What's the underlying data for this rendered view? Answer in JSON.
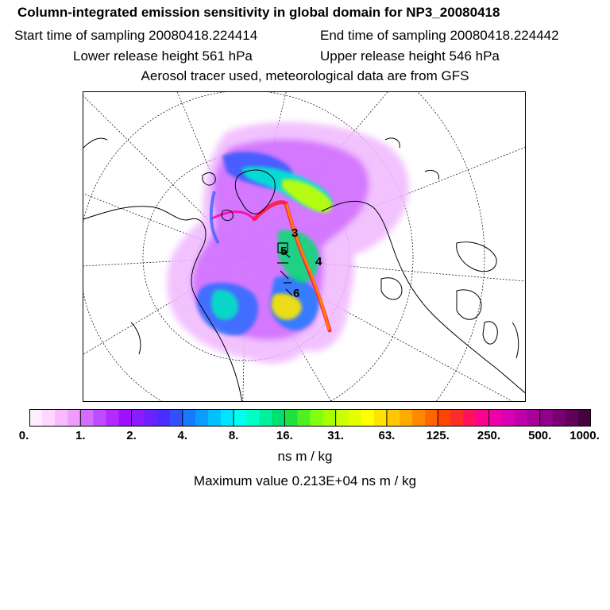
{
  "header": {
    "title": "Column-integrated emission sensitivity in global domain for NP3_20080418",
    "start_time": "Start time of sampling 20080418.224414",
    "end_time": "End time of sampling 20080418.224442",
    "lower_release": "Lower release height  561 hPa",
    "upper_release": "Upper release height  546 hPa",
    "tracer_info": "Aerosol tracer used, meteorological data are from GFS"
  },
  "map": {
    "projection": "north-polar-stereographic",
    "plume_labels": [
      "3",
      "4",
      "5",
      "6"
    ]
  },
  "colorbar": {
    "tick_labels": [
      "0.",
      "1.",
      "2.",
      "4.",
      "8.",
      "16.",
      "31.",
      "63.",
      "125.",
      "250.",
      "500.",
      "1000."
    ],
    "unit": "ns m / kg",
    "colors": [
      "#ffeeff",
      "#ffd6ff",
      "#f8baff",
      "#f09cff",
      "#d56cff",
      "#c04cff",
      "#b22cff",
      "#a010ff",
      "#8a1cff",
      "#6a22ff",
      "#4a2cff",
      "#3050ff",
      "#1878ff",
      "#0c9cff",
      "#00c0ff",
      "#00e4ff",
      "#00ffee",
      "#00ffc8",
      "#00f0a0",
      "#00e070",
      "#20e040",
      "#50f020",
      "#80ff10",
      "#a8ff00",
      "#ccff00",
      "#e4ff00",
      "#ffff00",
      "#ffe400",
      "#ffc800",
      "#ffaa00",
      "#ff8800",
      "#ff6600",
      "#ff4400",
      "#ff2a2a",
      "#ff1060",
      "#ff0090",
      "#f000a8",
      "#d800b0",
      "#c000a8",
      "#a80098",
      "#900088",
      "#780070",
      "#600058",
      "#480040"
    ]
  },
  "max_value": "Maximum value  0.213E+04 ns m / kg"
}
